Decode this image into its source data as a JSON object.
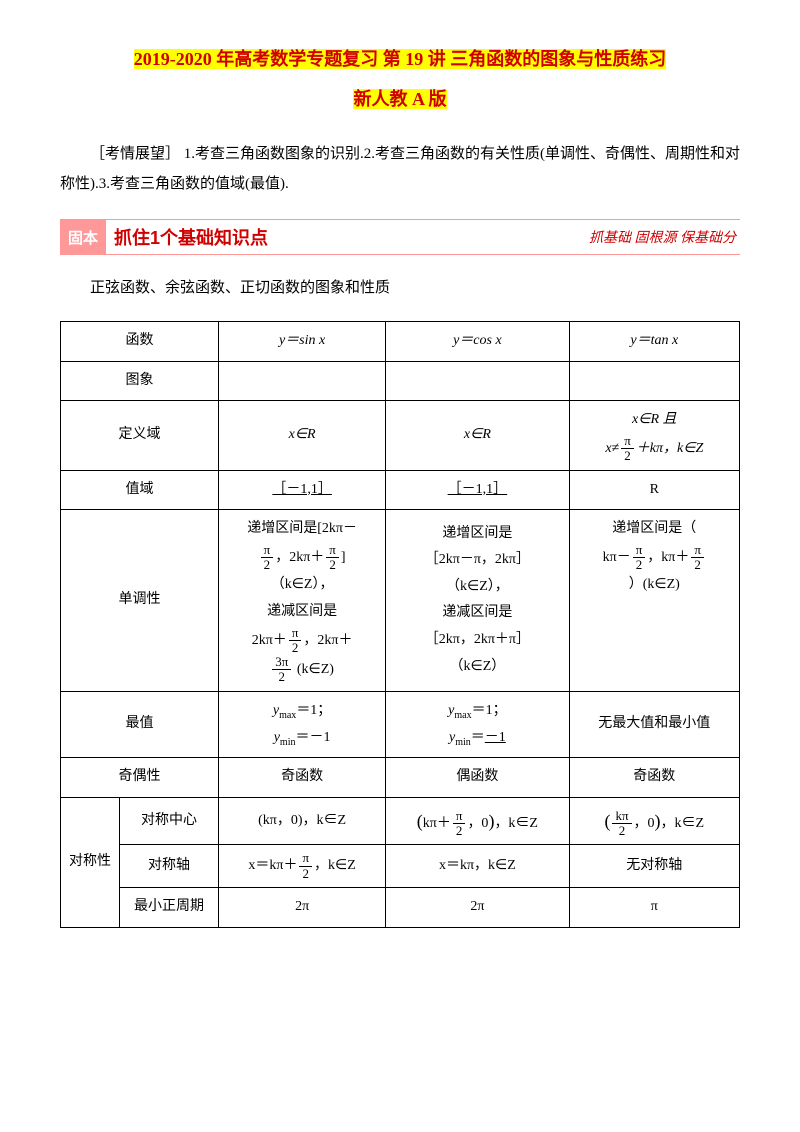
{
  "title_line1": "2019-2020 年高考数学专题复习 第 19 讲 三角函数的图象与性质练习",
  "title_line2": "新人教 A 版",
  "intro": "［考情展望］ 1.考查三角函数图象的识别.2.考查三角函数的有关性质(单调性、奇偶性、周期性和对称性).3.考查三角函数的值域(最值).",
  "section_badge": "固本",
  "section_title_pre": "抓住",
  "section_title_num": "1",
  "section_title_post": "个基础知识点",
  "section_sub": "抓基础 固根源 保基础分",
  "subtext": "正弦函数、余弦函数、正切函数的图象和性质",
  "labels": {
    "func": "函数",
    "graph": "图象",
    "domain": "定义域",
    "range": "值域",
    "mono": "单调性",
    "extreme": "最值",
    "parity": "奇偶性",
    "sym": "对称性",
    "sym_center": "对称中心",
    "sym_axis": "对称轴",
    "period": "最小正周期"
  },
  "funcs": {
    "sin": "y＝sin x",
    "cos": "y＝cos x",
    "tan": "y＝tan x"
  },
  "cells": {
    "domain_sin": "x∈R",
    "domain_cos": "x∈R",
    "domain_tan_l1": "x∈R 且",
    "domain_tan_l2a": "x≠",
    "domain_tan_l2b": "＋kπ，k∈Z",
    "range_sin": "［－1,1］",
    "range_cos": "［－1,1］",
    "range_tan": "R",
    "mono_sin_1": "递增区间是[2kπ－",
    "mono_sin_2": "，2kπ＋",
    "mono_sin_3": "]",
    "mono_sin_4": "（k∈Z），",
    "mono_sin_5": "递减区间是",
    "mono_sin_6": "2kπ＋",
    "mono_sin_7": "，2kπ＋",
    "mono_sin_8": " (k∈Z)",
    "mono_cos_1": "递增区间是",
    "mono_cos_2": "［2kπ－π，2kπ］",
    "mono_cos_3": "（k∈Z），",
    "mono_cos_4": "递减区间是",
    "mono_cos_5": "［2kπ，2kπ＋π］",
    "mono_cos_6": "（k∈Z）",
    "mono_tan_1": "递增区间是（",
    "mono_tan_2": "kπ－",
    "mono_tan_3": "，kπ＋",
    "mono_tan_4": "）(k∈Z)",
    "ext_sin_1": "＝1；",
    "ext_sin_2": "＝－1",
    "ext_cos_1": "＝1；",
    "ext_cos_2": "＝",
    "ext_cos_3": "－1",
    "ext_tan": "无最大值和最小值",
    "ymax": "y",
    "ymax_sub": "max",
    "ymin": "y",
    "ymin_sub": "min",
    "par_odd": "奇函数",
    "par_even": "偶函数",
    "symc_sin": "(kπ，0)，k∈Z",
    "symc_cos_a": "kπ＋",
    "symc_cos_b": "，0",
    "symc_cos_c": "，k∈Z",
    "symc_tan_b": "，0",
    "symc_tan_c": "，k∈Z",
    "syma_sin_a": "x＝kπ＋",
    "syma_sin_b": "，k∈Z",
    "syma_cos": "x＝kπ，k∈Z",
    "syma_tan": "无对称轴",
    "period_sin": "2π",
    "period_cos": "2π",
    "period_tan": "π",
    "pi": "π",
    "two": "2",
    "three_pi": "3π",
    "kpi": "kπ"
  }
}
